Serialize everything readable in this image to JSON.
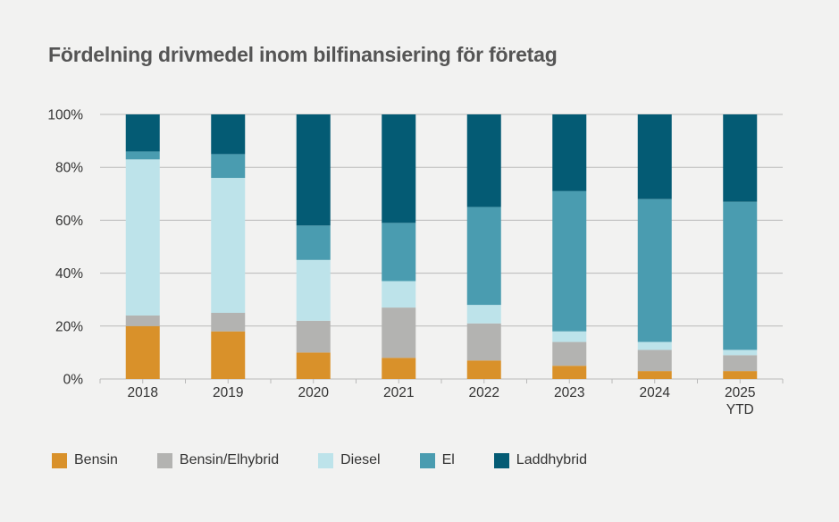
{
  "title": "Fördelning drivmedel inom bilfinansiering för företag",
  "colors": {
    "background": "#f2f2f1",
    "grid": "#b9b9b9",
    "bensin": "#d9912a",
    "bensin_elhybrid": "#b3b3b1",
    "diesel": "#bde3ea",
    "el": "#4a9cb0",
    "laddhybrid": "#045b74"
  },
  "chart_data": {
    "type": "bar",
    "stacked": true,
    "title": "Fördelning drivmedel inom bilfinansiering för företag",
    "xlabel": "",
    "ylabel": "",
    "ylim": [
      0,
      100
    ],
    "yticks": [
      "0%",
      "20%",
      "40%",
      "60%",
      "80%",
      "100%"
    ],
    "categories": [
      "2018",
      "2019",
      "2020",
      "2021",
      "2022",
      "2023",
      "2024",
      "2025\nYTD"
    ],
    "grid": true,
    "legend_position": "bottom",
    "series": [
      {
        "name": "Bensin",
        "color": "#d9912a",
        "values": [
          20,
          18,
          10,
          8,
          7,
          5,
          3,
          3
        ]
      },
      {
        "name": "Bensin/Elhybrid",
        "color": "#b3b3b1",
        "values": [
          4,
          7,
          12,
          19,
          14,
          9,
          8,
          6
        ]
      },
      {
        "name": "Diesel",
        "color": "#bde3ea",
        "values": [
          59,
          51,
          23,
          10,
          7,
          4,
          3,
          2
        ]
      },
      {
        "name": "El",
        "color": "#4a9cb0",
        "values": [
          3,
          9,
          13,
          22,
          37,
          53,
          54,
          56
        ]
      },
      {
        "name": "Laddhybrid",
        "color": "#045b74",
        "values": [
          14,
          15,
          42,
          41,
          35,
          29,
          32,
          33
        ]
      }
    ]
  },
  "legend": [
    {
      "label": "Bensin",
      "color": "#d9912a"
    },
    {
      "label": "Bensin/Elhybrid",
      "color": "#b3b3b1"
    },
    {
      "label": "Diesel",
      "color": "#bde3ea"
    },
    {
      "label": "El",
      "color": "#4a9cb0"
    },
    {
      "label": "Laddhybrid",
      "color": "#045b74"
    }
  ]
}
